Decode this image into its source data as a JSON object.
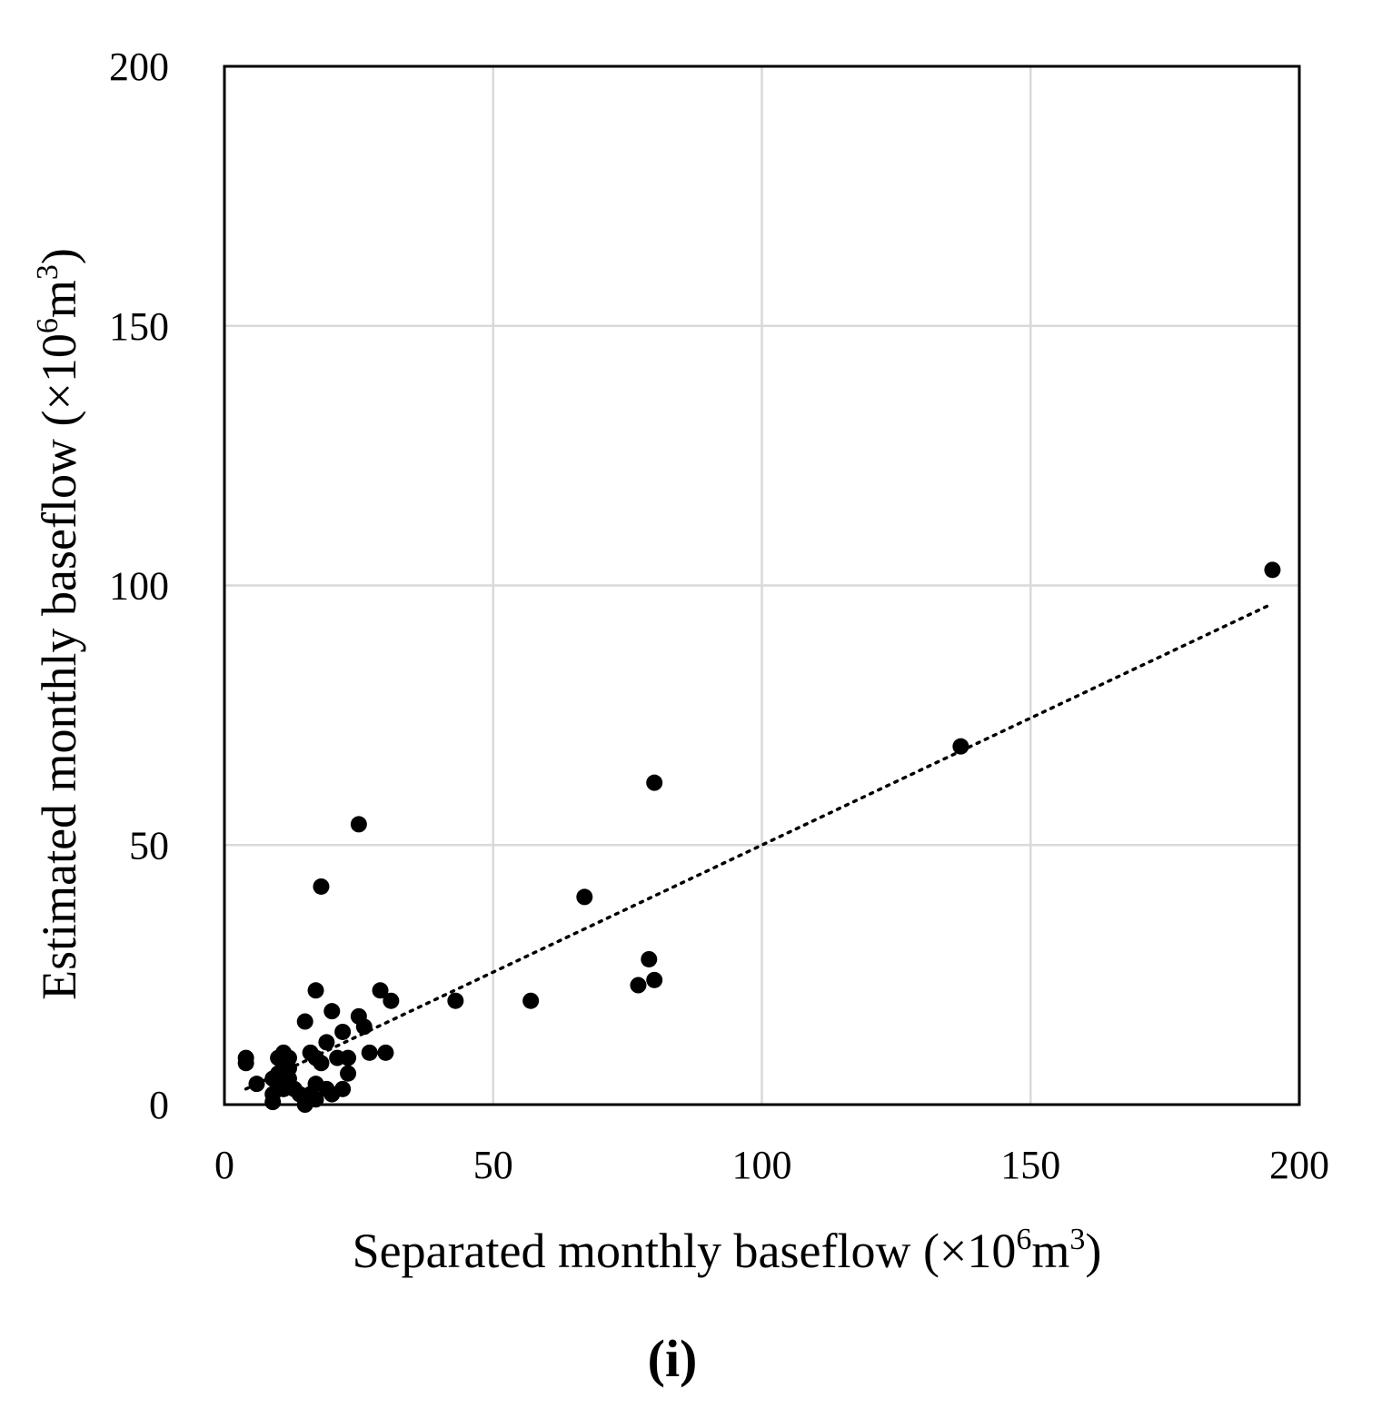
{
  "chart_data": {
    "type": "scatter",
    "title": "",
    "panel_label": "(i)",
    "xlabel": {
      "text": "Separated monthly baseflow (×10",
      "sup1": "6",
      "mid": "m",
      "sup2": "3",
      "end": ")"
    },
    "ylabel": {
      "text": "Estimated monthly baseflow (×10",
      "sup1": "6",
      "mid": "m",
      "sup2": "3",
      "end": ")"
    },
    "xlim": [
      0,
      200
    ],
    "ylim": [
      0,
      200
    ],
    "xticks": [
      "0",
      "50",
      "100",
      "150",
      "200"
    ],
    "yticks": [
      "0",
      "50",
      "100",
      "150",
      "200"
    ],
    "xtick_values": [
      0,
      50,
      100,
      150,
      200
    ],
    "ytick_values": [
      0,
      50,
      100,
      150,
      200
    ],
    "grid": true,
    "legend": "none",
    "marker_color": "#000000",
    "points": [
      [
        4,
        9
      ],
      [
        4,
        8
      ],
      [
        6,
        4
      ],
      [
        9,
        5
      ],
      [
        9,
        2
      ],
      [
        9,
        0.5
      ],
      [
        10,
        9
      ],
      [
        10,
        6
      ],
      [
        10,
        4
      ],
      [
        11,
        10
      ],
      [
        11,
        8
      ],
      [
        11,
        3
      ],
      [
        12,
        9
      ],
      [
        12,
        7
      ],
      [
        12,
        5
      ],
      [
        13,
        3
      ],
      [
        14,
        2
      ],
      [
        15,
        16
      ],
      [
        15,
        0
      ],
      [
        16,
        10
      ],
      [
        16,
        2
      ],
      [
        17,
        22
      ],
      [
        17,
        9
      ],
      [
        17,
        4
      ],
      [
        17,
        1
      ],
      [
        18,
        42
      ],
      [
        18,
        8
      ],
      [
        19,
        12
      ],
      [
        19,
        3
      ],
      [
        20,
        18
      ],
      [
        20,
        2
      ],
      [
        21,
        9
      ],
      [
        22,
        14
      ],
      [
        22,
        3
      ],
      [
        23,
        9
      ],
      [
        23,
        6
      ],
      [
        25,
        54
      ],
      [
        25,
        17
      ],
      [
        26,
        15
      ],
      [
        27,
        10
      ],
      [
        29,
        22
      ],
      [
        30,
        10
      ],
      [
        31,
        20
      ],
      [
        43,
        20
      ],
      [
        57,
        20
      ],
      [
        67,
        40
      ],
      [
        77,
        23
      ],
      [
        79,
        28
      ],
      [
        80,
        62
      ],
      [
        80,
        24
      ],
      [
        137,
        69
      ],
      [
        195,
        103
      ]
    ],
    "trendline": {
      "style": "dotted",
      "x": [
        4,
        194
      ],
      "y": [
        3,
        96
      ]
    }
  }
}
